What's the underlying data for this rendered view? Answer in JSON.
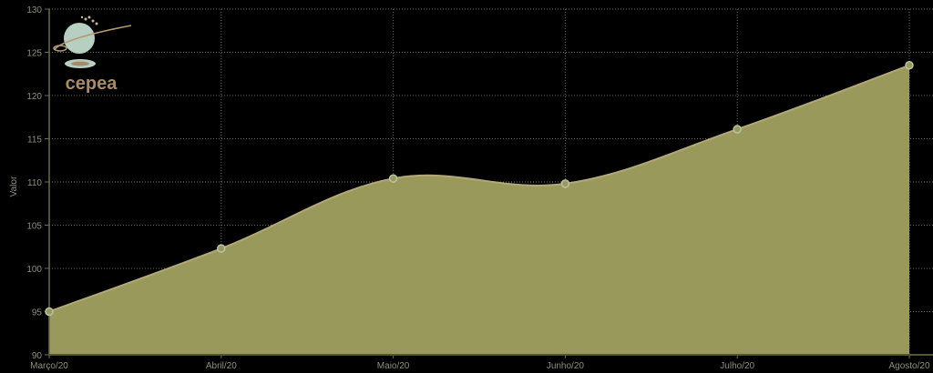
{
  "chart_data": {
    "type": "area",
    "title": "",
    "xlabel": "",
    "ylabel": "Valor",
    "categories": [
      "Março/20",
      "Abril/20",
      "Maio/20",
      "Junho/20",
      "Julho/20",
      "Agosto/20"
    ],
    "series": [
      {
        "name": "Valor",
        "values": [
          95.0,
          102.3,
          110.4,
          109.8,
          116.1,
          123.5
        ]
      }
    ],
    "ylim": [
      90,
      130
    ],
    "yticks": [
      90,
      95,
      100,
      105,
      110,
      115,
      120,
      125,
      130
    ],
    "grid": true,
    "smooth": true,
    "legend": null
  },
  "colors": {
    "background": "#000000",
    "fill": "#99995c",
    "line": "#b3a878",
    "marker": "#b8c4a8",
    "grid": "#6b6b50",
    "tick_text": "#8f8f7a"
  },
  "logo": {
    "text": "CEPEA"
  }
}
